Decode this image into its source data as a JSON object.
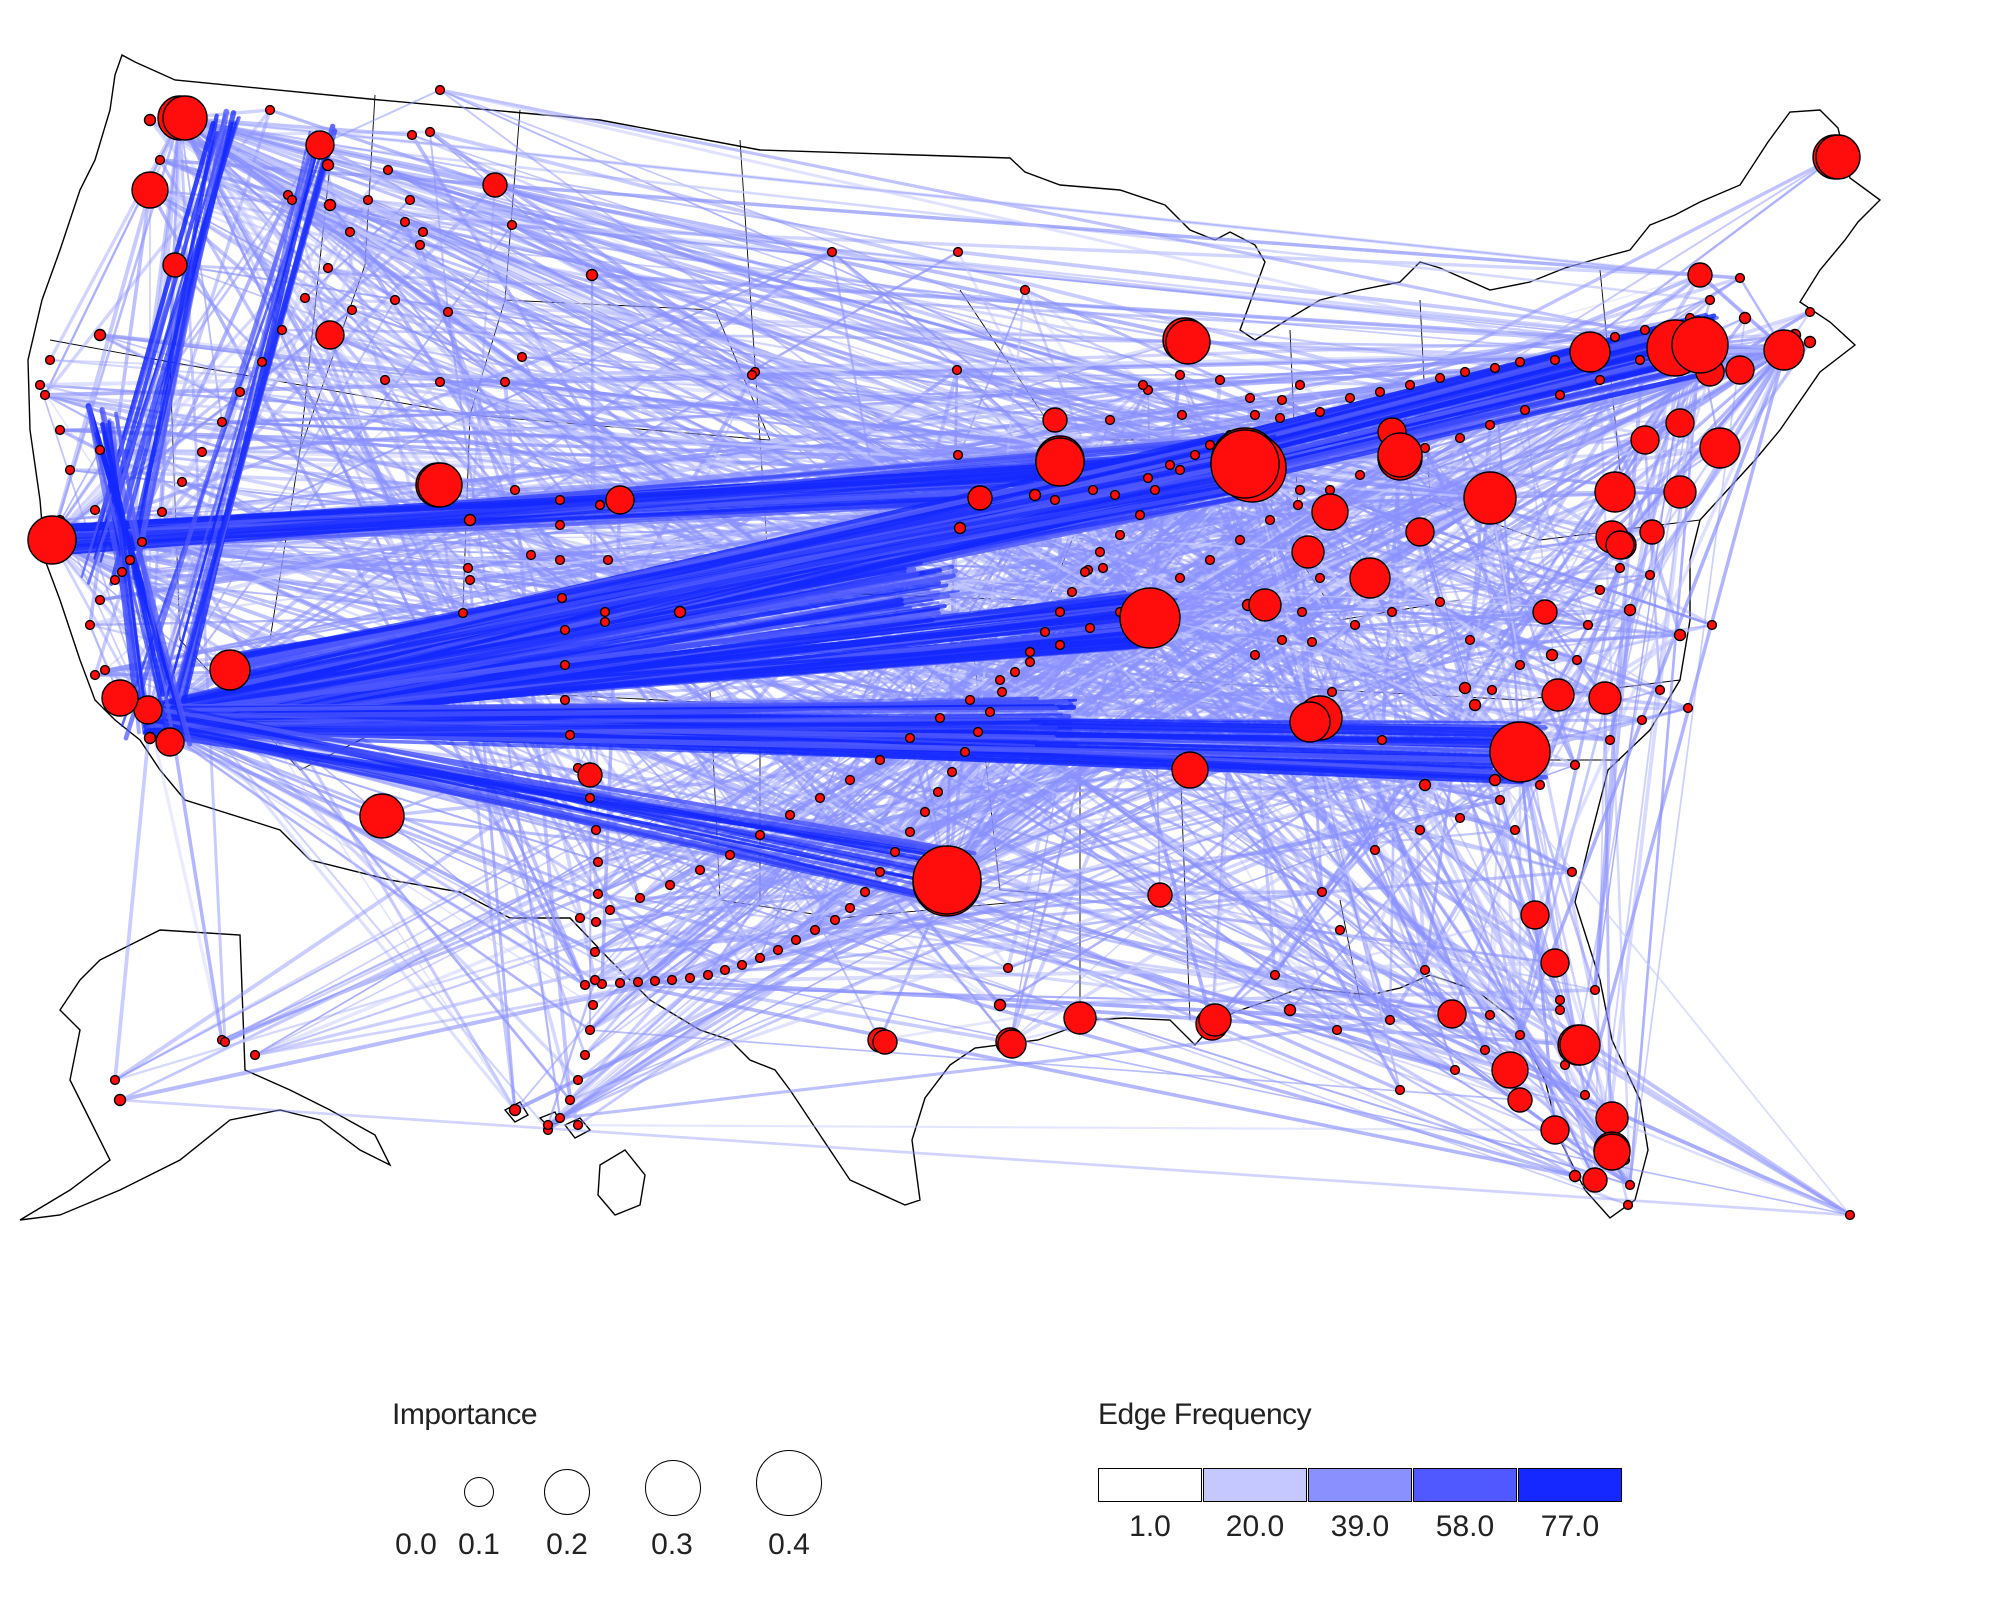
{
  "colors": {
    "node": "#ff0d0d",
    "edge_base": "#1428ff",
    "outline": "#000000"
  },
  "legend_importance": {
    "title": "Importance",
    "labels": [
      "0.0",
      "0.1",
      "0.2",
      "0.3",
      "0.4"
    ]
  },
  "legend_edge": {
    "title": "Edge Frequency",
    "labels": [
      "1.0",
      "20.0",
      "39.0",
      "58.0",
      "77.0"
    ],
    "colors": [
      "#ffffff",
      "#c4c8ff",
      "#8a91ff",
      "#4f59ff",
      "#1428ff"
    ]
  }
}
